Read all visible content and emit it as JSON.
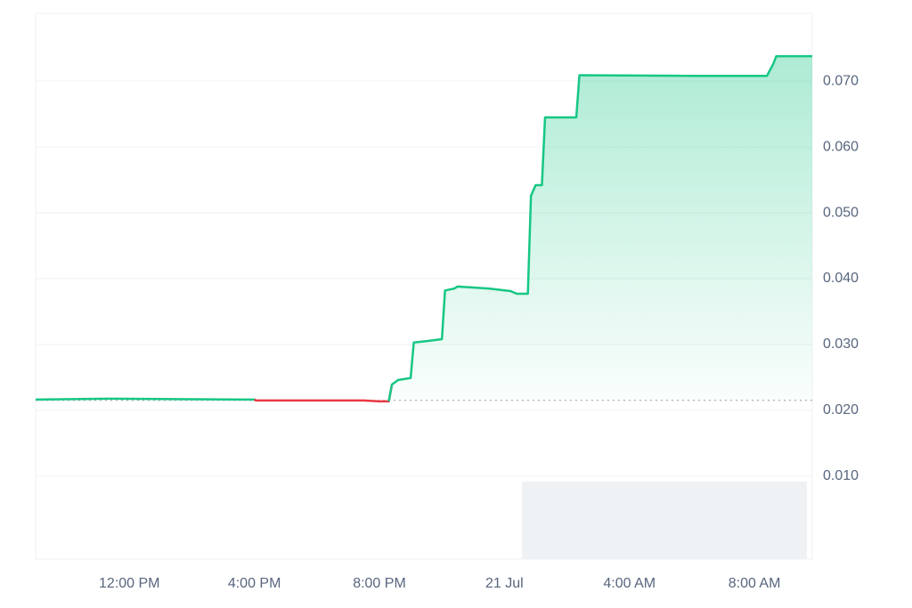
{
  "chart_data": {
    "type": "line",
    "x": [
      9.0,
      11.3,
      16.0,
      16.05,
      19.5,
      20.0,
      20.3,
      20.4,
      20.6,
      21.0,
      21.1,
      21.5,
      22.0,
      22.1,
      22.4,
      22.5,
      23.5,
      24.2,
      24.4,
      24.75,
      24.85,
      25.0,
      25.2,
      25.3,
      26.3,
      26.4,
      30.0,
      32.4,
      32.6,
      32.7,
      33.85
    ],
    "series": [
      {
        "color": "#16c784",
        "values": [
          0.02162,
          0.02176,
          0.02162,
          0.02149,
          0.02149,
          0.02135,
          0.02135,
          0.0239,
          0.0246,
          0.0249,
          0.0303,
          0.0305,
          0.0308,
          0.0382,
          0.0385,
          0.0388,
          0.0385,
          0.0381,
          0.0377,
          0.0377,
          0.0526,
          0.0542,
          0.0542,
          0.0645,
          0.0645,
          0.0709,
          0.0708,
          0.0708,
          0.0726,
          0.0738,
          0.0738
        ]
      }
    ],
    "down_color": "#ea3943",
    "baseline": 0.0215,
    "xlim": [
      9.0,
      33.85
    ],
    "xticks": [
      {
        "value": 12,
        "label": "12:00 PM"
      },
      {
        "value": 16,
        "label": "4:00 PM"
      },
      {
        "value": 20,
        "label": "8:00 PM"
      },
      {
        "value": 24,
        "label": "21 Jul"
      },
      {
        "value": 28,
        "label": "4:00 AM"
      },
      {
        "value": 32,
        "label": "8:00 AM"
      }
    ],
    "ylim": [
      -0.0026,
      0.0803
    ],
    "yticks": [
      {
        "value": 0.01,
        "label": "0.010"
      },
      {
        "value": 0.02,
        "label": "0.020"
      },
      {
        "value": 0.03,
        "label": "0.030"
      },
      {
        "value": 0.04,
        "label": "0.040"
      },
      {
        "value": 0.05,
        "label": "0.050"
      },
      {
        "value": 0.06,
        "label": "0.060"
      },
      {
        "value": 0.07,
        "label": "0.070"
      }
    ],
    "grid": true
  }
}
